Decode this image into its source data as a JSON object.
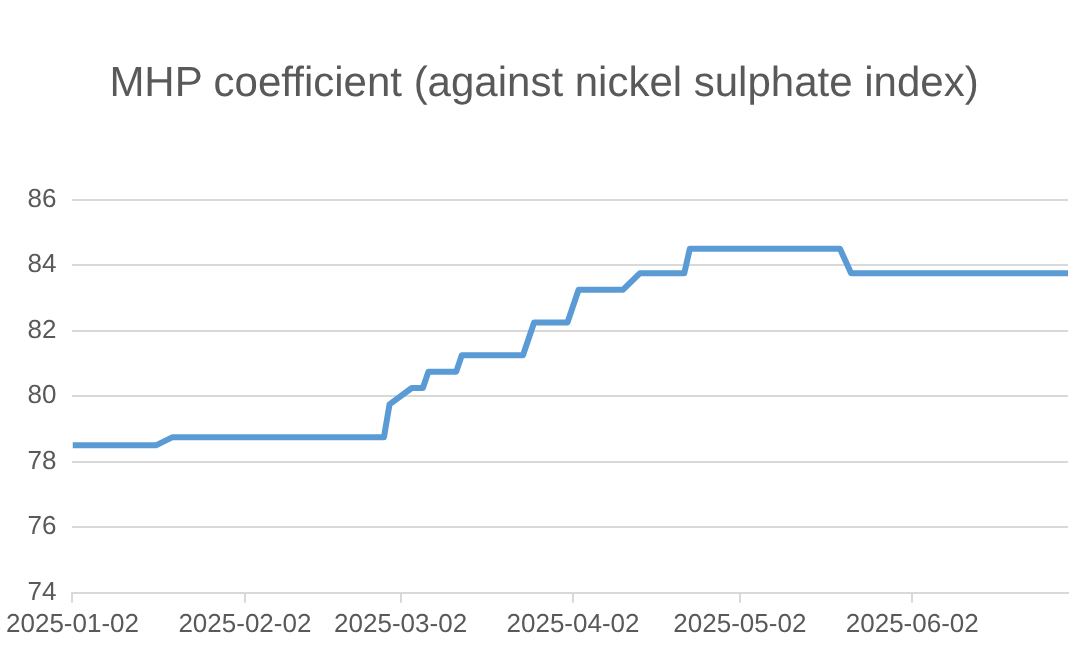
{
  "chart_data": {
    "type": "line",
    "title": "MHP coefficient (against nickel sulphate index)",
    "x": [
      "2025-01-02",
      "2025-01-17",
      "2025-01-20",
      "2025-02-27",
      "2025-02-28",
      "2025-03-04",
      "2025-03-06",
      "2025-03-07",
      "2025-03-12",
      "2025-03-13",
      "2025-03-24",
      "2025-03-26",
      "2025-04-01",
      "2025-04-03",
      "2025-04-11",
      "2025-04-14",
      "2025-04-22",
      "2025-04-23",
      "2025-05-20",
      "2025-05-22",
      "2025-06-30"
    ],
    "series": [
      {
        "color": "#5b9bd5",
        "values": [
          78.5,
          78.5,
          78.75,
          78.75,
          79.75,
          80.25,
          80.25,
          80.75,
          80.75,
          81.25,
          81.25,
          82.25,
          82.25,
          83.25,
          83.25,
          83.75,
          83.75,
          84.5,
          84.5,
          83.75,
          83.75
        ]
      }
    ],
    "xlim": [
      "2025-01-02",
      "2025-06-30"
    ],
    "xticks": [
      "2025-01-02",
      "2025-02-02",
      "2025-03-02",
      "2025-04-02",
      "2025-05-02",
      "2025-06-02"
    ],
    "ylim": [
      74,
      86
    ],
    "yticks": [
      74,
      76,
      78,
      80,
      82,
      84,
      86
    ],
    "grid": "y",
    "legend": false,
    "marker": "none",
    "line_style": "solid"
  }
}
